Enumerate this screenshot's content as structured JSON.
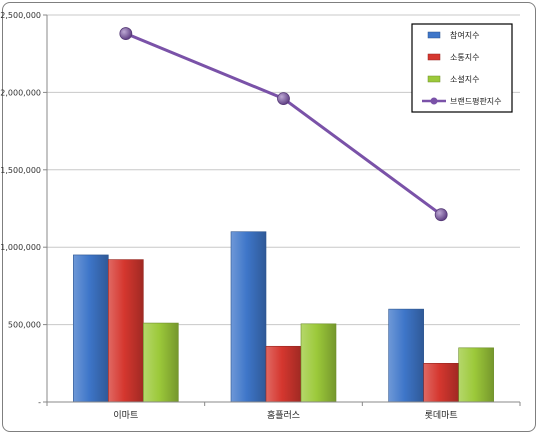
{
  "chart_data": {
    "type": "bar",
    "categories": [
      "이마트",
      "홈플러스",
      "롯데마트"
    ],
    "series": [
      {
        "name": "참여지수",
        "kind": "bar",
        "color": "#3e76c9",
        "values": [
          950000,
          1100000,
          600000
        ]
      },
      {
        "name": "소통지수",
        "kind": "bar",
        "color": "#d5372f",
        "values": [
          920000,
          360000,
          250000
        ]
      },
      {
        "name": "소셜지수",
        "kind": "bar",
        "color": "#9cc93a",
        "values": [
          510000,
          505000,
          350000
        ]
      },
      {
        "name": "브랜드평판지수",
        "kind": "line",
        "color": "#7a52a8",
        "values": [
          2380000,
          1960000,
          1210000
        ]
      }
    ],
    "ylim": [
      0,
      2500000
    ],
    "y_ticks": [
      "-",
      "500,000",
      "1,000,000",
      "1,500,000",
      "2,000,000",
      "2,500,000"
    ],
    "grid": true,
    "legend_position": "top-right"
  }
}
